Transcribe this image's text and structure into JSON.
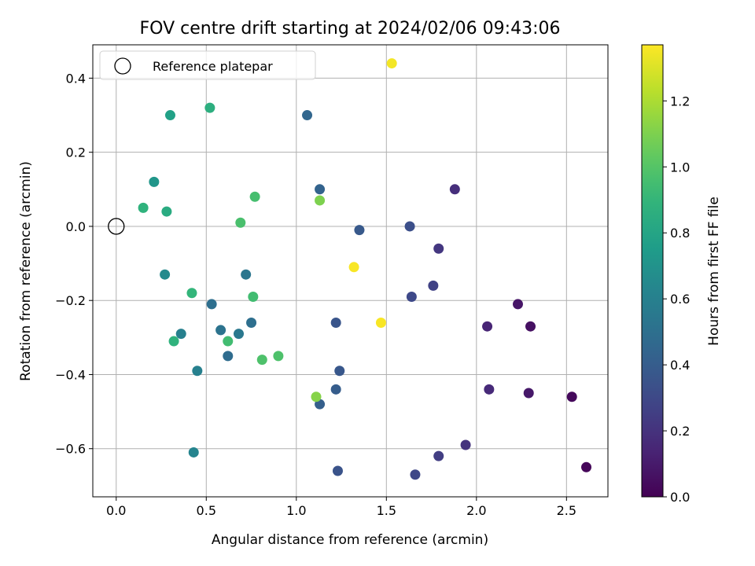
{
  "chart_data": {
    "type": "scatter",
    "title": "FOV centre drift starting at 2024/02/06 09:43:06",
    "xlabel": "Angular distance from reference (arcmin)",
    "ylabel": "Rotation from reference (arcmin)",
    "xlim": [
      -0.13,
      2.73
    ],
    "ylim": [
      -0.73,
      0.49
    ],
    "xticks": [
      0.0,
      0.5,
      1.0,
      1.5,
      2.0,
      2.5
    ],
    "xtick_labels": [
      "0.0",
      "0.5",
      "1.0",
      "1.5",
      "2.0",
      "2.5"
    ],
    "yticks": [
      0.4,
      0.2,
      0.0,
      -0.2,
      -0.4,
      -0.6
    ],
    "ytick_labels": [
      "0.4",
      "0.2",
      "0.0",
      "−0.2",
      "−0.4",
      "−0.6"
    ],
    "grid": true,
    "legend": {
      "position": "top-left",
      "entries": [
        "Reference platepar"
      ]
    },
    "reference_point": {
      "x": 0.0,
      "y": 0.0
    },
    "colorbar": {
      "label": "Hours from first FF file",
      "range": [
        0.0,
        1.37
      ],
      "ticks": [
        0.0,
        0.2,
        0.4,
        0.6,
        0.8,
        1.0,
        1.2
      ],
      "tick_labels": [
        "0.0",
        "0.2",
        "0.4",
        "0.6",
        "0.8",
        "1.0",
        "1.2"
      ],
      "colormap": "viridis"
    },
    "points": [
      {
        "x": 2.61,
        "y": -0.65,
        "c": 0.02
      },
      {
        "x": 2.53,
        "y": -0.46,
        "c": 0.03
      },
      {
        "x": 2.3,
        "y": -0.27,
        "c": 0.06
      },
      {
        "x": 2.29,
        "y": -0.45,
        "c": 0.09
      },
      {
        "x": 2.23,
        "y": -0.21,
        "c": 0.08
      },
      {
        "x": 2.06,
        "y": -0.27,
        "c": 0.14
      },
      {
        "x": 2.07,
        "y": -0.44,
        "c": 0.16
      },
      {
        "x": 1.94,
        "y": -0.59,
        "c": 0.2
      },
      {
        "x": 1.88,
        "y": 0.1,
        "c": 0.18
      },
      {
        "x": 1.79,
        "y": -0.06,
        "c": 0.22
      },
      {
        "x": 1.79,
        "y": -0.62,
        "c": 0.25
      },
      {
        "x": 1.76,
        "y": -0.16,
        "c": 0.27
      },
      {
        "x": 1.66,
        "y": -0.67,
        "c": 0.29
      },
      {
        "x": 1.64,
        "y": -0.19,
        "c": 0.3
      },
      {
        "x": 1.63,
        "y": 0.0,
        "c": 0.33
      },
      {
        "x": 1.35,
        "y": -0.01,
        "c": 0.38
      },
      {
        "x": 1.24,
        "y": -0.39,
        "c": 0.37
      },
      {
        "x": 1.23,
        "y": -0.66,
        "c": 0.35
      },
      {
        "x": 1.22,
        "y": -0.26,
        "c": 0.36
      },
      {
        "x": 1.22,
        "y": -0.44,
        "c": 0.4
      },
      {
        "x": 1.13,
        "y": -0.48,
        "c": 0.41
      },
      {
        "x": 1.13,
        "y": 0.1,
        "c": 0.43
      },
      {
        "x": 1.06,
        "y": 0.3,
        "c": 0.45
      },
      {
        "x": 0.53,
        "y": -0.21,
        "c": 0.5
      },
      {
        "x": 0.58,
        "y": -0.28,
        "c": 0.52
      },
      {
        "x": 0.62,
        "y": -0.35,
        "c": 0.48
      },
      {
        "x": 0.68,
        "y": -0.29,
        "c": 0.55
      },
      {
        "x": 0.72,
        "y": -0.13,
        "c": 0.54
      },
      {
        "x": 0.75,
        "y": -0.26,
        "c": 0.5
      },
      {
        "x": 0.45,
        "y": -0.39,
        "c": 0.6
      },
      {
        "x": 0.43,
        "y": -0.61,
        "c": 0.62
      },
      {
        "x": 0.36,
        "y": -0.29,
        "c": 0.6
      },
      {
        "x": 0.27,
        "y": -0.13,
        "c": 0.65
      },
      {
        "x": 0.21,
        "y": 0.12,
        "c": 0.72
      },
      {
        "x": 0.3,
        "y": 0.3,
        "c": 0.78
      },
      {
        "x": 0.52,
        "y": 0.32,
        "c": 0.86
      },
      {
        "x": 0.28,
        "y": 0.04,
        "c": 0.84
      },
      {
        "x": 0.15,
        "y": 0.05,
        "c": 0.88
      },
      {
        "x": 0.32,
        "y": -0.31,
        "c": 0.88
      },
      {
        "x": 0.42,
        "y": -0.18,
        "c": 0.9
      },
      {
        "x": 0.62,
        "y": -0.31,
        "c": 0.95
      },
      {
        "x": 0.69,
        "y": 0.01,
        "c": 0.97
      },
      {
        "x": 0.77,
        "y": 0.08,
        "c": 0.96
      },
      {
        "x": 0.76,
        "y": -0.19,
        "c": 0.95
      },
      {
        "x": 0.81,
        "y": -0.36,
        "c": 0.98
      },
      {
        "x": 0.9,
        "y": -0.35,
        "c": 0.98
      },
      {
        "x": 1.13,
        "y": 0.07,
        "c": 1.1
      },
      {
        "x": 1.11,
        "y": -0.46,
        "c": 1.12
      },
      {
        "x": 1.32,
        "y": -0.11,
        "c": 1.36
      },
      {
        "x": 1.47,
        "y": -0.26,
        "c": 1.36
      },
      {
        "x": 1.53,
        "y": 0.44,
        "c": 1.35
      }
    ]
  }
}
